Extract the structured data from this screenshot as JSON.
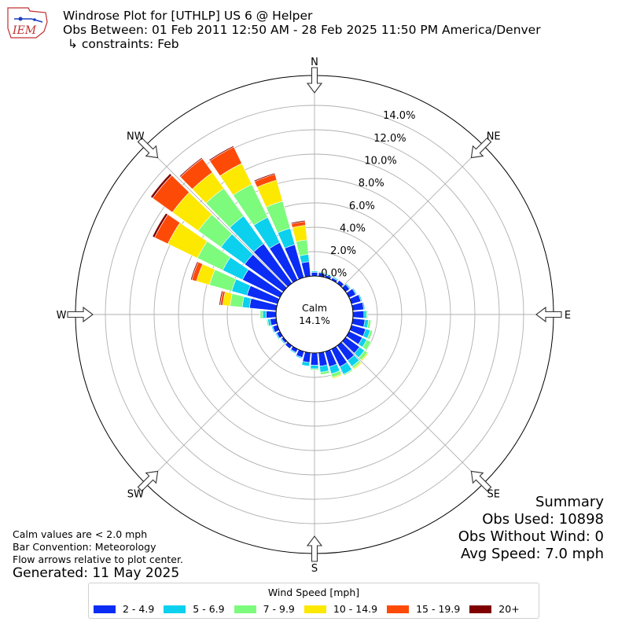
{
  "header": {
    "logo_text": "IEM",
    "title": "Windrose Plot for [UTHLP] US 6 @ Helper",
    "obs_between": "Obs Between: 01 Feb 2011 12:50 AM - 28 Feb 2025 11:50 PM America/Denver",
    "constraints": "↳ constraints: Feb"
  },
  "summary": {
    "heading": "Summary",
    "obs_used": "Obs Used: 10898",
    "obs_without_wind": "Obs Without Wind: 0",
    "avg_speed": "Avg Speed: 7.0 mph"
  },
  "notes": {
    "calm_note": "Calm values are < 2.0 mph",
    "bar_convention": "Bar Convention: Meteorology",
    "flow_arrows": "Flow arrows relative to plot center.",
    "generated": "Generated: 11 May 2025"
  },
  "colors": {
    "bins": [
      "#0a2cf5",
      "#0bd0ee",
      "#7dfb7d",
      "#fde800",
      "#fe4a07",
      "#800000"
    ],
    "grid": "#b0b0b0",
    "calm_circle": "#000000"
  },
  "chart_data": {
    "type": "windrose",
    "directions": [
      "N",
      "NE",
      "E",
      "SE",
      "S",
      "SW",
      "W",
      "NW"
    ],
    "radial_tick_labels": [
      "0.0%",
      "2.0%",
      "4.0%",
      "6.0%",
      "8.0%",
      "10.0%",
      "12.0%",
      "14.0%"
    ],
    "rlim": [
      0,
      14
    ],
    "calm": {
      "label": "Calm",
      "value": "14.1%"
    },
    "legend": {
      "title": "Wind Speed [mph]",
      "bins": [
        "2 - 4.9",
        "5 - 6.9",
        "7 - 9.9",
        "10 - 14.9",
        "15 - 19.9",
        "20+"
      ]
    },
    "sectors_deg": [
      0,
      10,
      20,
      30,
      40,
      50,
      60,
      70,
      80,
      90,
      100,
      110,
      120,
      130,
      140,
      150,
      160,
      170,
      180,
      190,
      200,
      210,
      220,
      230,
      240,
      250,
      260,
      270,
      280,
      290,
      300,
      310,
      320,
      330,
      340,
      350
    ],
    "stacked_pct": [
      [
        0.3,
        0.4,
        0.4,
        0.4,
        0.4,
        0.4
      ],
      [
        0.3,
        0.3,
        0.4,
        0.4,
        0.4,
        0.4
      ],
      [
        0.2,
        0.3,
        0.3,
        0.3,
        0.3,
        0.3
      ],
      [
        0.2,
        0.3,
        0.3,
        0.3,
        0.3,
        0.3
      ],
      [
        0.3,
        0.3,
        0.3,
        0.3,
        0.3,
        0.3
      ],
      [
        0.4,
        0.5,
        0.5,
        0.5,
        0.5,
        0.5
      ],
      [
        0.6,
        0.7,
        0.7,
        0.7,
        0.7,
        0.7
      ],
      [
        0.8,
        0.9,
        0.9,
        0.9,
        0.9,
        0.9
      ],
      [
        0.9,
        1.0,
        1.0,
        1.0,
        1.0,
        1.0
      ],
      [
        0.9,
        1.1,
        1.2,
        1.2,
        1.2,
        1.2
      ],
      [
        1.0,
        1.3,
        1.5,
        1.5,
        1.5,
        1.5
      ],
      [
        1.2,
        1.6,
        1.8,
        1.8,
        1.8,
        1.8
      ],
      [
        1.2,
        1.6,
        2.0,
        2.0,
        2.0,
        2.0
      ],
      [
        1.4,
        1.9,
        2.2,
        2.3,
        2.3,
        2.3
      ],
      [
        1.5,
        2.1,
        2.3,
        2.4,
        2.4,
        2.4
      ],
      [
        1.6,
        2.3,
        2.4,
        2.4,
        2.4,
        2.4
      ],
      [
        1.3,
        1.9,
        2.2,
        2.3,
        2.3,
        2.3
      ],
      [
        1.1,
        1.6,
        1.8,
        1.8,
        1.8,
        1.8
      ],
      [
        1.0,
        1.3,
        1.4,
        1.4,
        1.4,
        1.4
      ],
      [
        0.8,
        1.1,
        1.1,
        1.1,
        1.1,
        1.1
      ],
      [
        0.5,
        0.6,
        0.6,
        0.6,
        0.6,
        0.6
      ],
      [
        0.3,
        0.4,
        0.4,
        0.4,
        0.4,
        0.4
      ],
      [
        0.3,
        0.3,
        0.3,
        0.3,
        0.3,
        0.3
      ],
      [
        0.2,
        0.3,
        0.3,
        0.3,
        0.3,
        0.3
      ],
      [
        0.3,
        0.4,
        0.4,
        0.4,
        0.4,
        0.4
      ],
      [
        0.4,
        0.5,
        0.5,
        0.5,
        0.5,
        0.5
      ],
      [
        0.5,
        0.7,
        0.8,
        0.8,
        0.8,
        0.8
      ],
      [
        0.8,
        1.1,
        1.3,
        1.3,
        1.3,
        1.3
      ],
      [
        2.2,
        2.8,
        3.8,
        4.4,
        4.6,
        4.7
      ],
      [
        2.6,
        3.9,
        5.8,
        6.9,
        7.3,
        7.4
      ],
      [
        3.4,
        5.2,
        7.5,
        10.2,
        11.4,
        11.6
      ],
      [
        3.9,
        6.3,
        8.6,
        11.2,
        13.2,
        13.4
      ],
      [
        4.0,
        6.8,
        9.6,
        11.2,
        12.6,
        12.7
      ],
      [
        3.4,
        5.7,
        8.7,
        10.6,
        12.1,
        12.2
      ],
      [
        2.8,
        4.2,
        6.5,
        8.3,
        8.8,
        8.9
      ],
      [
        1.2,
        1.8,
        3.0,
        4.2,
        4.5,
        4.6
      ]
    ]
  }
}
